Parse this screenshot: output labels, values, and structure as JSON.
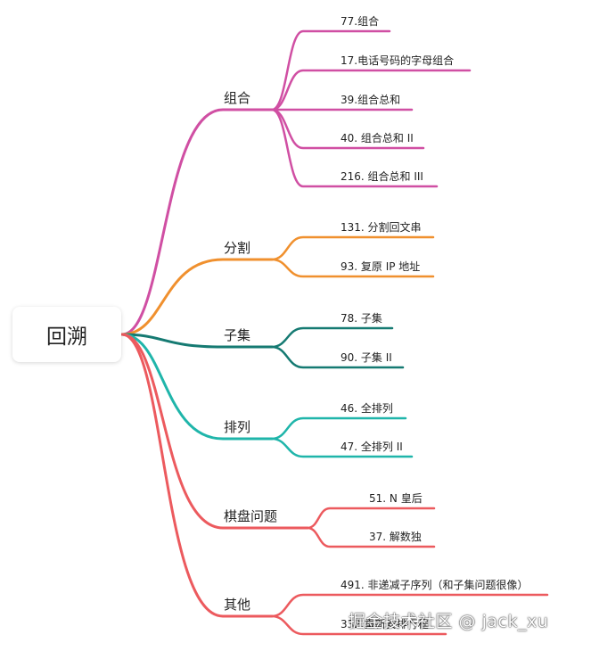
{
  "root": {
    "label": "回溯"
  },
  "branches": [
    {
      "label": "组合",
      "color": "#d04fa3",
      "leaves": [
        "77.组合",
        "17.电话号码的字母组合",
        "39.组合总和",
        "40. 组合总和 II",
        "216. 组合总和 III"
      ]
    },
    {
      "label": "分割",
      "color": "#f0902e",
      "leaves": [
        "131. 分割回文串",
        "93. 复原 IP 地址"
      ]
    },
    {
      "label": "子集",
      "color": "#157a72",
      "leaves": [
        "78. 子集",
        "90. 子集 II"
      ]
    },
    {
      "label": "排列",
      "color": "#1fb5aa",
      "leaves": [
        "46. 全排列",
        "47. 全排列 II"
      ]
    },
    {
      "label": "棋盘问题",
      "color": "#ec5a5e",
      "leaves": [
        "51. N 皇后",
        "37. 解数独"
      ]
    },
    {
      "label": "其他",
      "color": "#ec5a5e",
      "leaves": [
        "491. 非递减子序列（和子集问题很像）",
        "332.重新安排行程"
      ]
    }
  ],
  "watermark": "掘金技术社区 @ jack_xu"
}
